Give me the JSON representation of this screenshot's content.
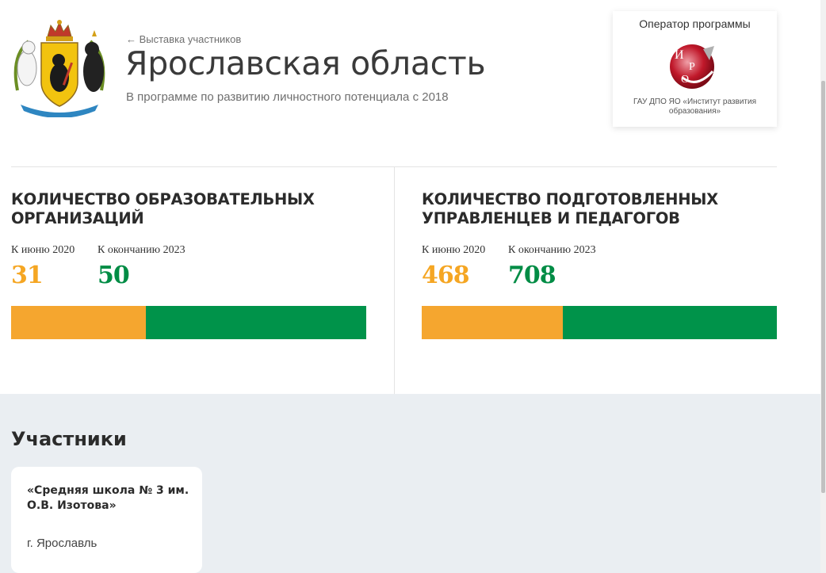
{
  "header": {
    "back_link": "← Выставка участников",
    "title": "Ярославская область",
    "subtitle": "В программе по развитию личностного потенциала с 2018",
    "crest_icon": "yaroslavl-coat-of-arms"
  },
  "operator": {
    "label": "Оператор программы",
    "logo_letters": "И Р О",
    "name": "ГАУ ДПО ЯО «Институт развития образования»"
  },
  "stats": [
    {
      "title": "Количество образовательных организаций",
      "label_now": "К июню 2020",
      "value_now": "31",
      "label_target": "К окончанию 2023",
      "value_target": "50",
      "progress_fraction": 0.38
    },
    {
      "title": "Количество подготовленных управленцев и педагогов",
      "label_now": "К июню 2020",
      "value_now": "468",
      "label_target": "К окончанию 2023",
      "value_target": "708",
      "progress_fraction": 0.397
    }
  ],
  "colors": {
    "accent_orange": "#f5a623",
    "accent_green": "#008c45",
    "participants_bg": "#eaeef2"
  },
  "participants": {
    "title": "Участники",
    "items": [
      {
        "name": "«Средняя школа № 3 им. О.В. Изотова»",
        "city": "г. Ярославль"
      }
    ]
  }
}
